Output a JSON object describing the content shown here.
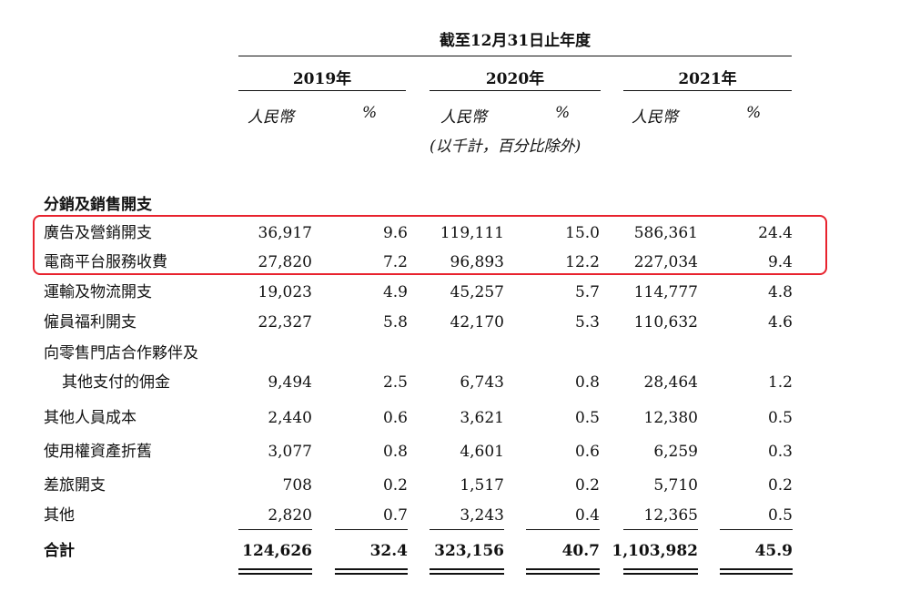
{
  "header": {
    "period_title": "截至12月31日止年度",
    "years": [
      "2019年",
      "2020年",
      "2021年"
    ],
    "currency_label": "人民幣",
    "percent_label": "%",
    "unit_note": "(以千計，百分比除外)"
  },
  "section_title": "分銷及銷售開支",
  "rows": [
    {
      "label": "廣告及營銷開支",
      "values": [
        "36,917",
        "9.6",
        "119,111",
        "15.0",
        "586,361",
        "24.4"
      ]
    },
    {
      "label": "電商平台服務收費",
      "values": [
        "27,820",
        "7.2",
        "96,893",
        "12.2",
        "227,034",
        "9.4"
      ]
    },
    {
      "label": "運輸及物流開支",
      "values": [
        "19,023",
        "4.9",
        "45,257",
        "5.7",
        "114,777",
        "4.8"
      ]
    },
    {
      "label": "僱員福利開支",
      "values": [
        "22,327",
        "5.8",
        "42,170",
        "5.3",
        "110,632",
        "4.6"
      ]
    },
    {
      "label": "向零售門店合作夥伴及",
      "label2": "其他支付的佣金",
      "values": [
        "9,494",
        "2.5",
        "6,743",
        "0.8",
        "28,464",
        "1.2"
      ]
    },
    {
      "label": "其他人員成本",
      "values": [
        "2,440",
        "0.6",
        "3,621",
        "0.5",
        "12,380",
        "0.5"
      ]
    },
    {
      "label": "使用權資產折舊",
      "values": [
        "3,077",
        "0.8",
        "4,601",
        "0.6",
        "6,259",
        "0.3"
      ]
    },
    {
      "label": "差旅開支",
      "values": [
        "708",
        "0.2",
        "1,517",
        "0.2",
        "5,710",
        "0.2"
      ]
    },
    {
      "label": "其他",
      "values": [
        "2,820",
        "0.7",
        "3,243",
        "0.4",
        "12,365",
        "0.5"
      ]
    }
  ],
  "total": {
    "label": "合計",
    "values": [
      "124,626",
      "32.4",
      "323,156",
      "40.7",
      "1,103,982",
      "45.9"
    ]
  },
  "colors": {
    "highlight_border": "#e8232e",
    "text": "#111111"
  }
}
